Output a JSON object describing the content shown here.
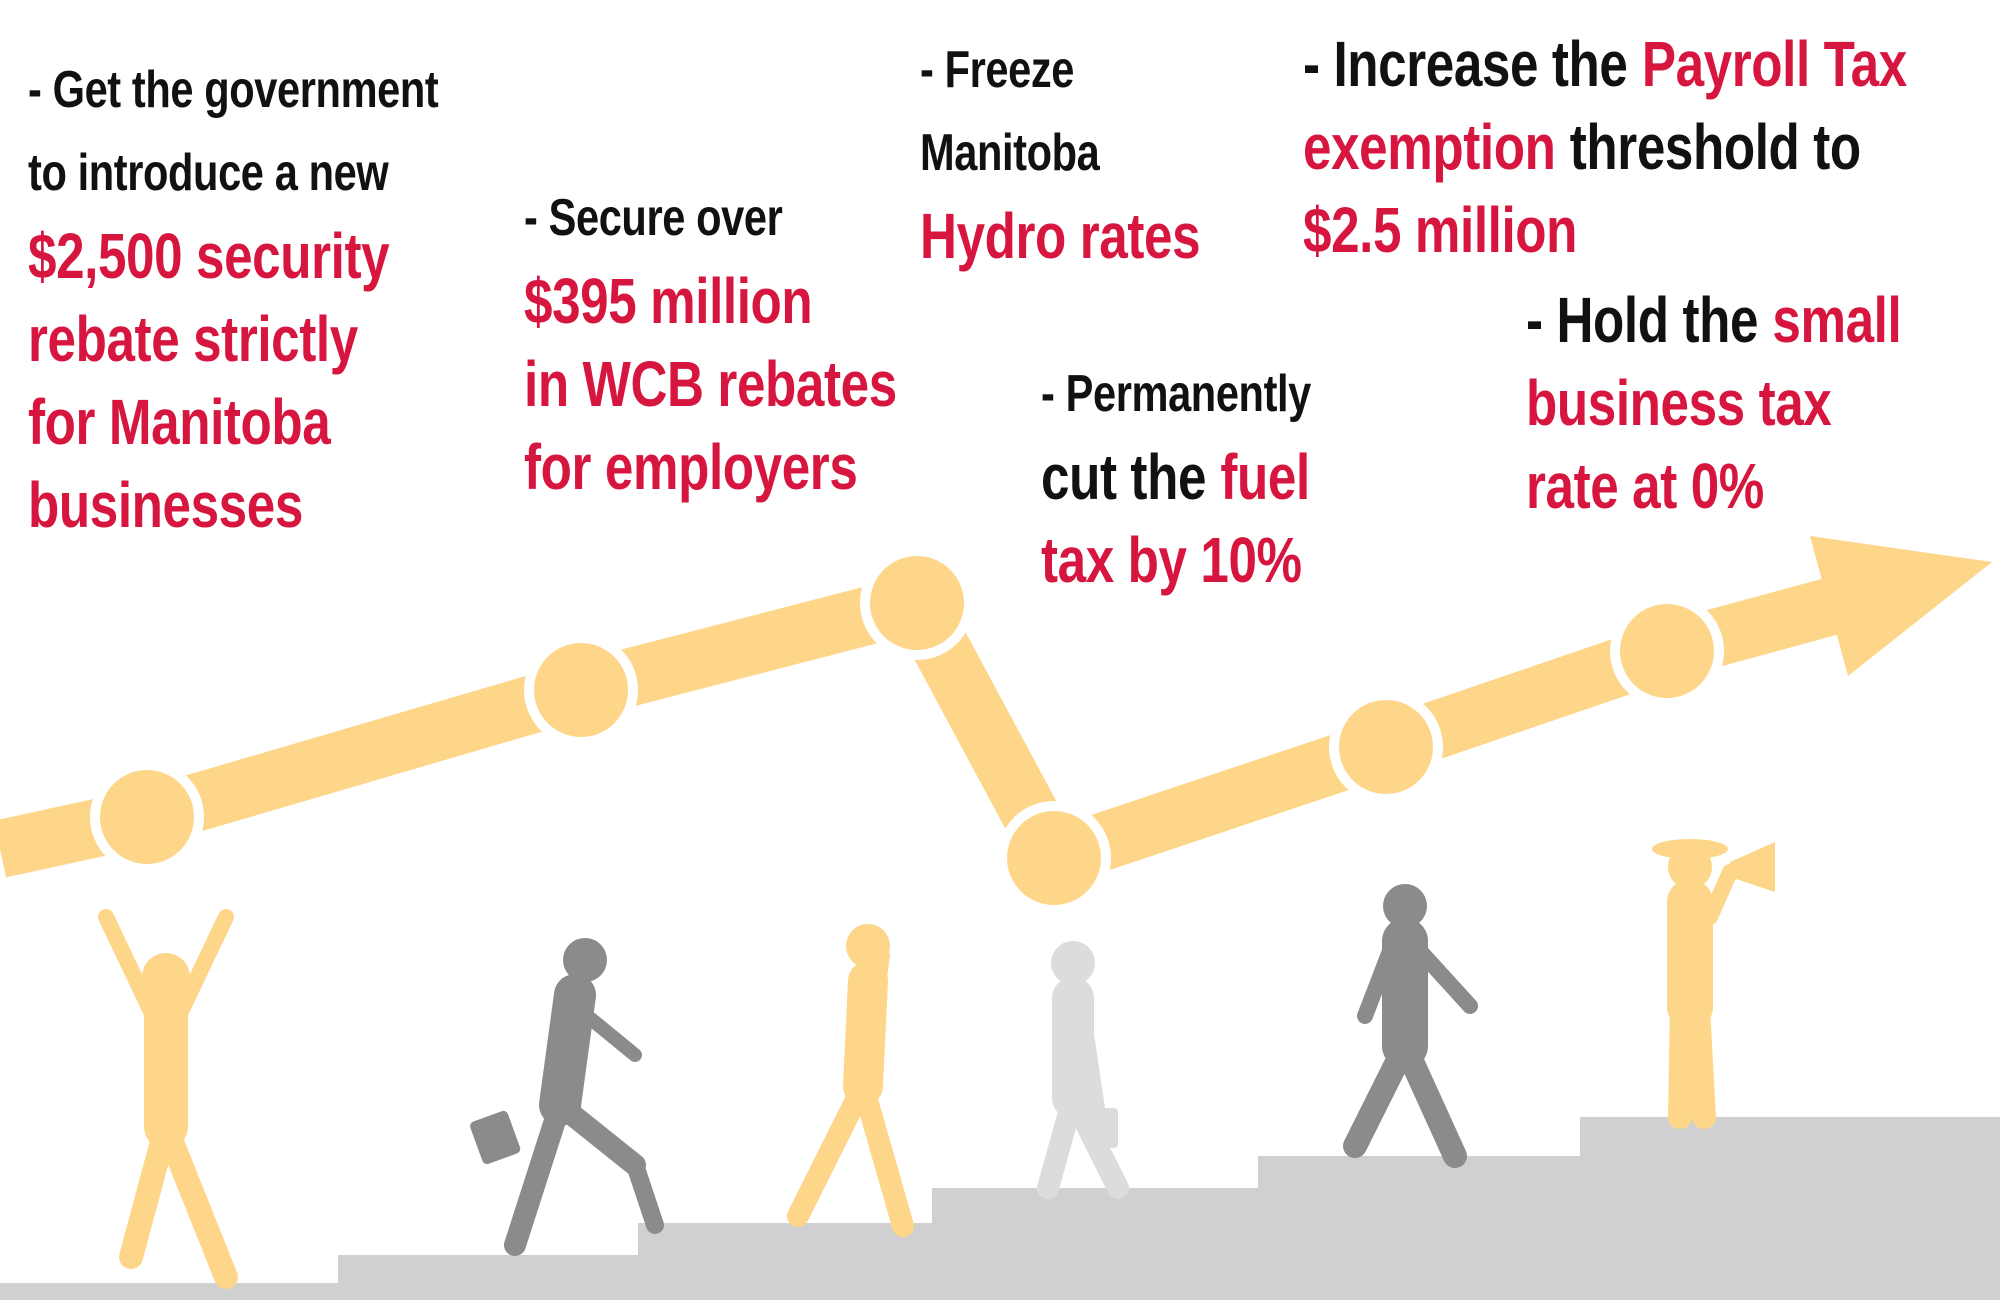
{
  "items": [
    {
      "lines": [
        [
          {
            "text": "- Get the government",
            "color": "#111111"
          }
        ],
        [
          {
            "text": "to introduce a new",
            "color": "#111111"
          }
        ],
        [
          {
            "text": "$2,500 security",
            "color": "#d6163f"
          }
        ],
        [
          {
            "text": "rebate strictly",
            "color": "#d6163f"
          }
        ],
        [
          {
            "text": "for Manitoba",
            "color": "#d6163f"
          }
        ],
        [
          {
            "text": "businesses",
            "color": "#d6163f"
          }
        ]
      ]
    },
    {
      "lines": [
        [
          {
            "text": "- Secure over",
            "color": "#111111"
          }
        ],
        [
          {
            "text": "$395 million",
            "color": "#d6163f"
          }
        ],
        [
          {
            "text": "in WCB rebates",
            "color": "#d6163f"
          }
        ],
        [
          {
            "text": "for employers",
            "color": "#d6163f"
          }
        ]
      ]
    },
    {
      "lines": [
        [
          {
            "text": "- Freeze",
            "color": "#111111"
          }
        ],
        [
          {
            "text": "Manitoba",
            "color": "#111111"
          }
        ],
        [
          {
            "text": "Hydro rates",
            "color": "#d6163f"
          }
        ]
      ]
    },
    {
      "lines": [
        [
          {
            "text": "- Increase the",
            "color": "#111111"
          },
          {
            "text": "Payroll Tax",
            "color": "#d6163f"
          }
        ],
        [
          {
            "text": "exemption",
            "color": "#d6163f"
          },
          {
            "text": "threshold to",
            "color": "#111111"
          }
        ],
        [
          {
            "text": "$2.5 million",
            "color": "#d6163f"
          }
        ]
      ]
    },
    {
      "lines": [
        [
          {
            "text": "- Permanently",
            "color": "#111111"
          }
        ],
        [
          {
            "text": "cut the",
            "color": "#111111"
          },
          {
            "text": "fuel",
            "color": "#d6163f"
          }
        ],
        [
          {
            "text": "tax by 10%",
            "color": "#d6163f"
          }
        ]
      ]
    },
    {
      "lines": [
        [
          {
            "text": "- Hold the",
            "color": "#111111"
          },
          {
            "text": "small",
            "color": "#d6163f"
          }
        ],
        [
          {
            "text": "business tax",
            "color": "#d6163f"
          }
        ],
        [
          {
            "text": "rate at 0%",
            "color": "#d6163f"
          }
        ]
      ]
    }
  ]
}
